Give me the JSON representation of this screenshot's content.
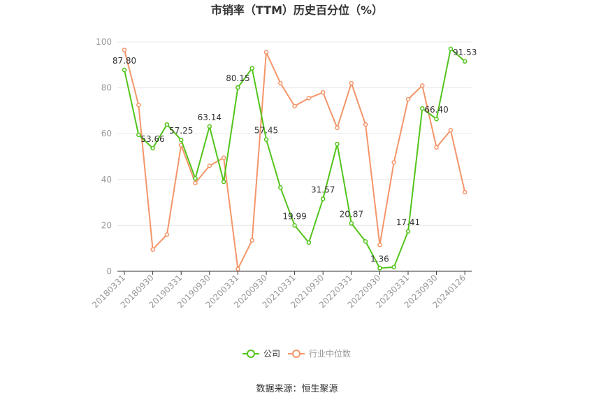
{
  "chart_data": {
    "type": "line",
    "title": "市销率（TTM）历史百分位（%）",
    "source": "数据来源：恒生聚源",
    "ylim": [
      0,
      100
    ],
    "yticks": [
      0,
      20,
      40,
      60,
      80,
      100
    ],
    "grid": true,
    "legend_position": "bottom",
    "x": [
      "20180331",
      "20180630",
      "20180930",
      "20181231",
      "20190331",
      "20190630",
      "20190930",
      "20191231",
      "20200331",
      "20200630",
      "20200930",
      "20201231",
      "20210331",
      "20210630",
      "20210930",
      "20211231",
      "20220331",
      "20220630",
      "20220930",
      "20221231",
      "20230331",
      "20230630",
      "20230930",
      "20231231",
      "20240126"
    ],
    "xtick_labels": [
      "20180331",
      "20180930",
      "20190331",
      "20190930",
      "20200331",
      "20200930",
      "20210331",
      "20210930",
      "20220331",
      "20220930",
      "20230331",
      "20230930",
      "20240126"
    ],
    "series": [
      {
        "name": "公司",
        "color": "#52c41a",
        "values": [
          87.8,
          59.5,
          53.66,
          64.0,
          57.25,
          40.5,
          63.14,
          39.0,
          80.15,
          88.5,
          57.45,
          36.5,
          19.99,
          12.5,
          31.57,
          55.5,
          20.87,
          13.0,
          1.36,
          1.8,
          17.41,
          71.0,
          66.4,
          97.0,
          91.53
        ],
        "data_labels": {
          "0": "87.80",
          "2": "53.66",
          "4": "57.25",
          "6": "63.14",
          "8": "80.15",
          "10": "57.45",
          "12": "19.99",
          "14": "31.57",
          "16": "20.87",
          "18": "1.36",
          "20": "17.41",
          "22": "66.40",
          "24": "91.53"
        }
      },
      {
        "name": "行业中位数",
        "color": "#f4956a",
        "values": [
          96.5,
          72.5,
          9.5,
          16.0,
          55.0,
          38.5,
          46.0,
          49.5,
          1.0,
          13.5,
          95.5,
          82.0,
          72.0,
          75.5,
          78.0,
          62.5,
          82.0,
          64.0,
          11.5,
          47.5,
          75.0,
          81.0,
          54.0,
          61.5,
          34.5
        ]
      }
    ]
  }
}
